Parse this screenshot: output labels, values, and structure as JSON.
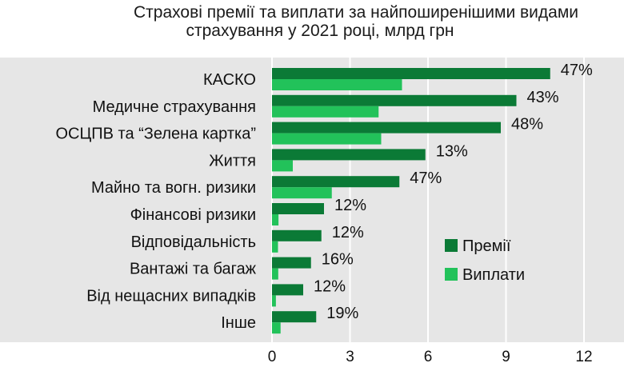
{
  "chart_data": {
    "type": "bar",
    "orientation": "horizontal",
    "title_line1": "Страхові премії та виплати за найпоширенішими видами",
    "title_line2": "страхування у 2021 році, млрд грн",
    "categories": [
      "КАСКО",
      "Медичне страхування",
      "ОСЦПВ та “Зелена картка”",
      "Життя",
      "Майно та вогн. ризики",
      "Фінансові ризики",
      "Відповідальність",
      "Вантажі та багаж",
      "Від нещасних випадків",
      "Інше"
    ],
    "series": [
      {
        "name": "Премії",
        "color": "#0b7a36",
        "values": [
          10.7,
          9.4,
          8.8,
          5.9,
          4.9,
          2.0,
          1.9,
          1.5,
          1.2,
          1.7
        ]
      },
      {
        "name": "Виплати",
        "color": "#22c25a",
        "values": [
          5.0,
          4.1,
          4.2,
          0.8,
          2.3,
          0.25,
          0.23,
          0.24,
          0.15,
          0.33
        ]
      }
    ],
    "ratio_labels": [
      "47%",
      "43%",
      "48%",
      "13%",
      "47%",
      "12%",
      "12%",
      "16%",
      "12%",
      "19%"
    ],
    "xlim": [
      0,
      12
    ],
    "xticks": [
      "0",
      "3",
      "6",
      "9",
      "12"
    ],
    "grid": true,
    "legend": "right",
    "plot_background": "#e6e6e6",
    "grid_color": "#ffffff"
  }
}
